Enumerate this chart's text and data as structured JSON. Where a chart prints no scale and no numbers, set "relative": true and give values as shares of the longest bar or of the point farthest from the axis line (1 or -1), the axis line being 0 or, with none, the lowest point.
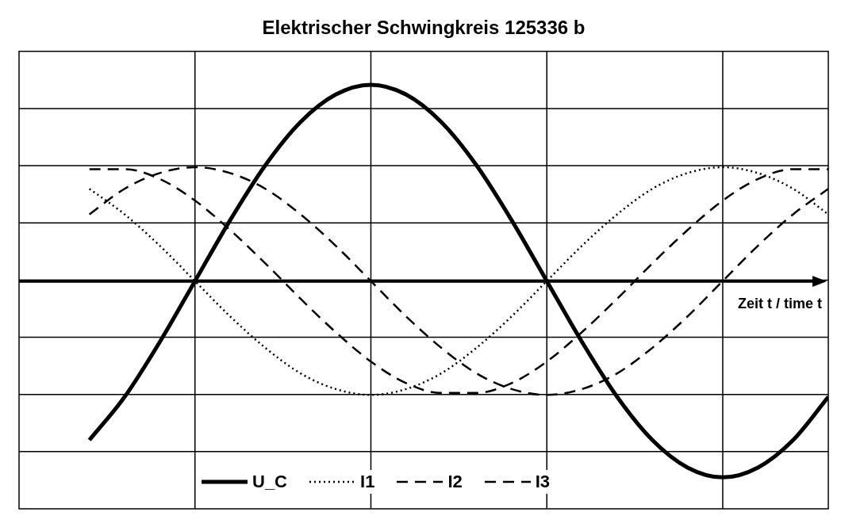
{
  "chart_data": {
    "type": "line",
    "title": "Elektrischer Schwingkreis 125336 b",
    "xlabel": "Zeit t / time t",
    "relative": true,
    "grid": true,
    "legend": "bottom",
    "marker": "none",
    "categories": [
      null,
      null,
      null,
      null,
      null,
      null,
      null,
      null,
      null,
      null,
      null,
      null,
      null,
      null,
      null,
      null,
      null,
      null,
      null,
      null,
      null,
      null
    ],
    "series": [
      {
        "name": "U_C",
        "color": "#000000",
        "line_style": "solid",
        "values": [
          -0.81,
          -0.59,
          -0.31,
          0,
          0.31,
          0.59,
          0.81,
          0.95,
          1,
          0.95,
          0.81,
          0.59,
          0.31,
          0,
          -0.31,
          -0.59,
          -0.81,
          -0.95,
          -1,
          -0.95,
          -0.81,
          -0.59
        ]
      },
      {
        "name": "I1",
        "color": "#000000",
        "line_style": "dotted",
        "values": [
          0.47,
          0.34,
          0.18,
          0,
          -0.18,
          -0.34,
          -0.47,
          -0.55,
          -0.58,
          -0.55,
          -0.47,
          -0.34,
          -0.18,
          0,
          0.18,
          0.34,
          0.47,
          0.55,
          0.58,
          0.55,
          0.47,
          0.34
        ]
      },
      {
        "name": "I2",
        "color": "#000000",
        "line_style": "dashed",
        "values": [
          0.34,
          0.47,
          0.55,
          0.58,
          0.55,
          0.47,
          0.34,
          0.18,
          0,
          -0.18,
          -0.34,
          -0.47,
          -0.55,
          -0.58,
          -0.55,
          -0.47,
          -0.34,
          -0.18,
          0,
          0.18,
          0.34,
          0.47
        ]
      },
      {
        "name": "I3",
        "color": "#000000",
        "line_style": "dashed",
        "values": [
          0.57,
          0.57,
          0.52,
          0.41,
          0.26,
          0.09,
          -0.09,
          -0.26,
          -0.41,
          -0.52,
          -0.57,
          -0.57,
          -0.52,
          -0.41,
          -0.26,
          -0.09,
          0.09,
          0.26,
          0.41,
          0.52,
          0.57,
          0.57
        ]
      }
    ]
  }
}
